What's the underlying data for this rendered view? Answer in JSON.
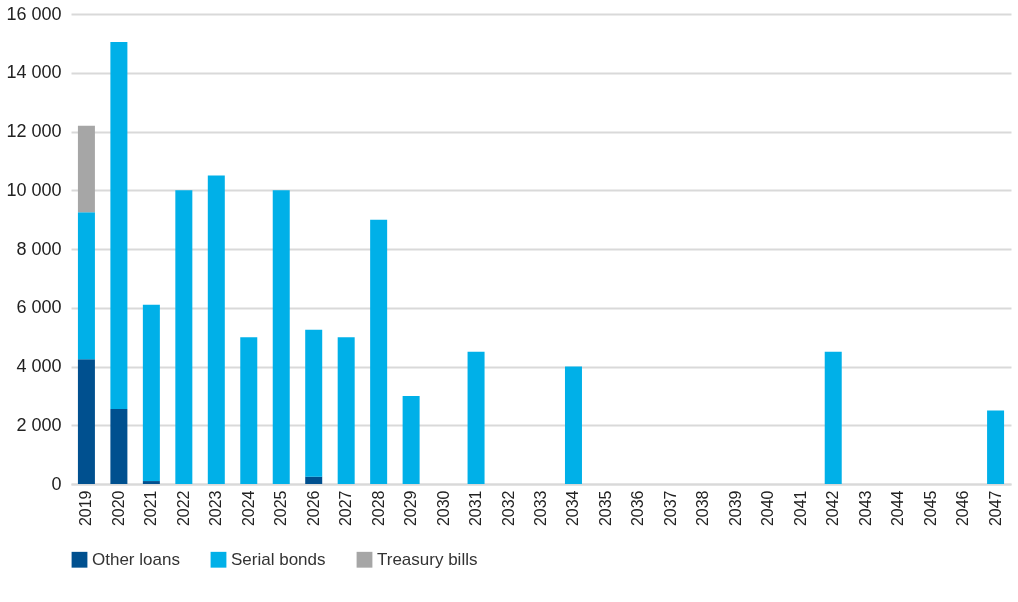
{
  "chart_data": {
    "type": "bar",
    "stacked": true,
    "categories": [
      "2019",
      "2020",
      "2021",
      "2022",
      "2023",
      "2024",
      "2025",
      "2026",
      "2027",
      "2028",
      "2029",
      "2030",
      "2031",
      "2032",
      "2033",
      "2034",
      "2035",
      "2036",
      "2037",
      "2038",
      "2039",
      "2040",
      "2041",
      "2042",
      "2043",
      "2044",
      "2045",
      "2046",
      "2047"
    ],
    "series": [
      {
        "name": "Other loans",
        "color": "#00508f",
        "values": [
          4250,
          2550,
          100,
          0,
          0,
          0,
          0,
          250,
          0,
          0,
          0,
          0,
          0,
          0,
          0,
          0,
          0,
          0,
          0,
          0,
          0,
          0,
          0,
          0,
          0,
          0,
          0,
          0,
          0
        ]
      },
      {
        "name": "Serial bonds",
        "color": "#00b0e8",
        "values": [
          5000,
          12500,
          6000,
          10000,
          10500,
          5000,
          10000,
          5000,
          5000,
          9000,
          3000,
          0,
          4500,
          0,
          0,
          4000,
          0,
          0,
          0,
          0,
          0,
          0,
          0,
          4500,
          0,
          0,
          0,
          0,
          2500
        ]
      },
      {
        "name": "Treasury bills",
        "color": "#a6a6a6",
        "values": [
          2950,
          0,
          0,
          0,
          0,
          0,
          0,
          0,
          0,
          0,
          0,
          0,
          0,
          0,
          0,
          0,
          0,
          0,
          0,
          0,
          0,
          0,
          0,
          0,
          0,
          0,
          0,
          0,
          0
        ]
      }
    ],
    "ylim": [
      0,
      16000
    ],
    "yticks": [
      {
        "value": 0,
        "label": "0"
      },
      {
        "value": 2000,
        "label": "2 000"
      },
      {
        "value": 4000,
        "label": "4 000"
      },
      {
        "value": 6000,
        "label": "6 000"
      },
      {
        "value": 8000,
        "label": "8 000"
      },
      {
        "value": 10000,
        "label": "10 000"
      },
      {
        "value": 12000,
        "label": "12 000"
      },
      {
        "value": 14000,
        "label": "14 000"
      },
      {
        "value": 16000,
        "label": "16 000"
      }
    ],
    "grid": "y",
    "legend": "bottom"
  }
}
